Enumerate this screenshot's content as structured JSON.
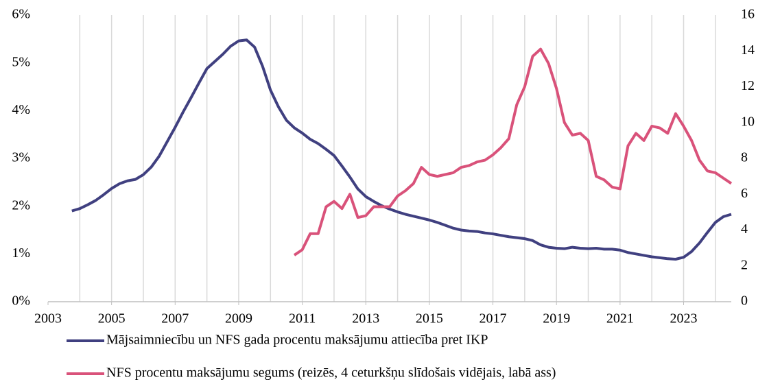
{
  "chart_data": {
    "type": "line",
    "x": [
      2003.75,
      2004,
      2004.25,
      2004.5,
      2004.75,
      2005,
      2005.25,
      2005.5,
      2005.75,
      2006,
      2006.25,
      2006.5,
      2006.75,
      2007,
      2007.25,
      2007.5,
      2007.75,
      2008,
      2008.25,
      2008.5,
      2008.75,
      2009,
      2009.25,
      2009.5,
      2009.75,
      2010,
      2010.25,
      2010.5,
      2010.75,
      2011,
      2011.25,
      2011.5,
      2011.75,
      2012,
      2012.25,
      2012.5,
      2012.75,
      2013,
      2013.25,
      2013.5,
      2013.75,
      2014,
      2014.25,
      2014.5,
      2014.75,
      2015,
      2015.25,
      2015.5,
      2015.75,
      2016,
      2016.25,
      2016.5,
      2016.75,
      2017,
      2017.25,
      2017.5,
      2017.75,
      2018,
      2018.25,
      2018.5,
      2018.75,
      2019,
      2019.25,
      2019.5,
      2019.75,
      2020,
      2020.25,
      2020.5,
      2020.75,
      2021,
      2021.25,
      2021.5,
      2021.75,
      2022,
      2022.25,
      2022.5,
      2022.75,
      2023,
      2023.25,
      2023.5,
      2023.75,
      2024,
      2024.25,
      2024.5
    ],
    "series": [
      {
        "name": "Mājsaimniecību un NFS gada procentu maksājumu attiecība pret IKP",
        "color": "#404080",
        "values": [
          1.9,
          1.95,
          2.03,
          2.12,
          2.24,
          2.37,
          2.47,
          2.53,
          2.56,
          2.66,
          2.82,
          3.05,
          3.35,
          3.65,
          3.97,
          4.27,
          4.58,
          4.88,
          5.03,
          5.18,
          5.35,
          5.46,
          5.48,
          5.33,
          4.93,
          4.43,
          4.08,
          3.8,
          3.64,
          3.53,
          3.4,
          3.31,
          3.19,
          3.06,
          2.84,
          2.61,
          2.36,
          2.2,
          2.1,
          2.01,
          1.94,
          1.88,
          1.83,
          1.79,
          1.75,
          1.71,
          1.66,
          1.6,
          1.54,
          1.5,
          1.48,
          1.47,
          1.44,
          1.42,
          1.39,
          1.36,
          1.34,
          1.32,
          1.28,
          1.19,
          1.14,
          1.12,
          1.11,
          1.14,
          1.12,
          1.11,
          1.12,
          1.1,
          1.1,
          1.08,
          1.03,
          1.0,
          0.97,
          0.94,
          0.92,
          0.9,
          0.89,
          0.93,
          1.05,
          1.23,
          1.45,
          1.66,
          1.78,
          1.83
        ]
      },
      {
        "name": "NFS procentu maksājumu segums (reizēs, 4 ceturkšņu slīdošais vidējais, labā ass)",
        "color": "#d9527a",
        "axis": "y2",
        "values": [
          null,
          null,
          null,
          null,
          null,
          null,
          null,
          null,
          null,
          null,
          null,
          null,
          null,
          null,
          null,
          null,
          null,
          null,
          null,
          null,
          null,
          null,
          null,
          null,
          null,
          null,
          null,
          null,
          2.6,
          2.9,
          3.8,
          3.8,
          5.3,
          5.6,
          5.2,
          6.0,
          4.7,
          4.8,
          5.3,
          5.3,
          5.3,
          5.9,
          6.2,
          6.6,
          7.5,
          7.1,
          7.0,
          7.1,
          7.2,
          7.5,
          7.6,
          7.8,
          7.9,
          8.2,
          8.6,
          9.1,
          11.0,
          12.0,
          13.7,
          14.1,
          13.3,
          11.9,
          10.0,
          9.3,
          9.4,
          9.0,
          7.0,
          6.8,
          6.4,
          6.3,
          8.7,
          9.4,
          9.0,
          9.8,
          9.7,
          9.4,
          10.5,
          9.8,
          9.0,
          7.9,
          7.3,
          7.2,
          6.9,
          6.6
        ]
      }
    ],
    "xlim": [
      2003,
      2024.5
    ],
    "xticks": [
      2003,
      2005,
      2007,
      2009,
      2011,
      2013,
      2015,
      2017,
      2019,
      2021,
      2023
    ],
    "xgrid": [
      2004,
      2005,
      2006,
      2007,
      2008,
      2009,
      2010,
      2011,
      2012,
      2013,
      2014,
      2015,
      2016,
      2017,
      2018,
      2019,
      2020,
      2021,
      2022,
      2023,
      2024
    ],
    "ylim": [
      0,
      6
    ],
    "yticks": [
      {
        "value": 0,
        "label": "0%"
      },
      {
        "value": 1,
        "label": "1%"
      },
      {
        "value": 2,
        "label": "2%"
      },
      {
        "value": 3,
        "label": "3%"
      },
      {
        "value": 4,
        "label": "4%"
      },
      {
        "value": 5,
        "label": "5%"
      },
      {
        "value": 6,
        "label": "6%"
      }
    ],
    "y2lim": [
      0,
      16
    ],
    "y2ticks": [
      0,
      2,
      4,
      6,
      8,
      10,
      12,
      14,
      16
    ],
    "legend": "bottom"
  }
}
